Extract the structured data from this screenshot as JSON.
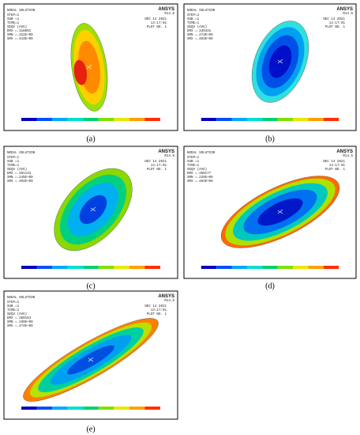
{
  "panels": [
    {
      "label": "(a)",
      "title": "NODAL SOLUTION",
      "info": [
        "STEP=1",
        "SUB =1",
        "TIME=1",
        "SEQV (AVG)",
        "DMX =.318091",
        "SMN =.222E+09",
        "SMX =.443E+09"
      ],
      "brand": "ANSYS",
      "version": "R14.5",
      "date": "DEC 14 2021",
      "time": "14:17:01",
      "plot": "PLOT NO. 1"
    },
    {
      "label": "(b)",
      "title": "NODAL SOLUTION",
      "info": [
        "STEP=1",
        "SUB =1",
        "TIME=1",
        "SEQV (AVG)",
        "DMX =.340431",
        "SMN =.273E+09",
        "SMX =.403E+09"
      ],
      "brand": "ANSYS",
      "version": "R14.5",
      "date": "DEC 14 2021",
      "time": "14:17:01",
      "plot": "PLOT NO. 1"
    },
    {
      "label": "(c)",
      "title": "NODAL SOLUTION",
      "info": [
        "STEP=1",
        "SUB =1",
        "TIME=1",
        "SEQV (AVG)",
        "DMX =.401133",
        "SMN =.245E+09",
        "SMX =.402E+09"
      ],
      "brand": "ANSYS",
      "version": "R14.5",
      "date": "DEC 14 2021",
      "time": "14:17:01",
      "plot": "PLOT NO. 1"
    },
    {
      "label": "(d)",
      "title": "NODAL SOLUTION",
      "info": [
        "STEP=1",
        "SUB =1",
        "TIME=1",
        "SEQV (AVG)",
        "DMX =.358177",
        "SMN =.226E+09",
        "SMX =.403E+09"
      ],
      "brand": "ANSYS",
      "version": "R14.5",
      "date": "DEC 14 2021",
      "time": "14:17:01",
      "plot": "PLOT NO. 1"
    },
    {
      "label": "(e)",
      "title": "NODAL SOLUTION",
      "info": [
        "STEP=1",
        "SUB =1",
        "TIME=1",
        "SEQV (AVG)",
        "DMX =.360163",
        "SMN =.199E+09",
        "SMX =.474E+09"
      ],
      "brand": "ANSYS",
      "version": "R14.5",
      "date": "DEC 14 2021",
      "time": "14:17:01",
      "plot": "PLOT NO. 1"
    }
  ]
}
